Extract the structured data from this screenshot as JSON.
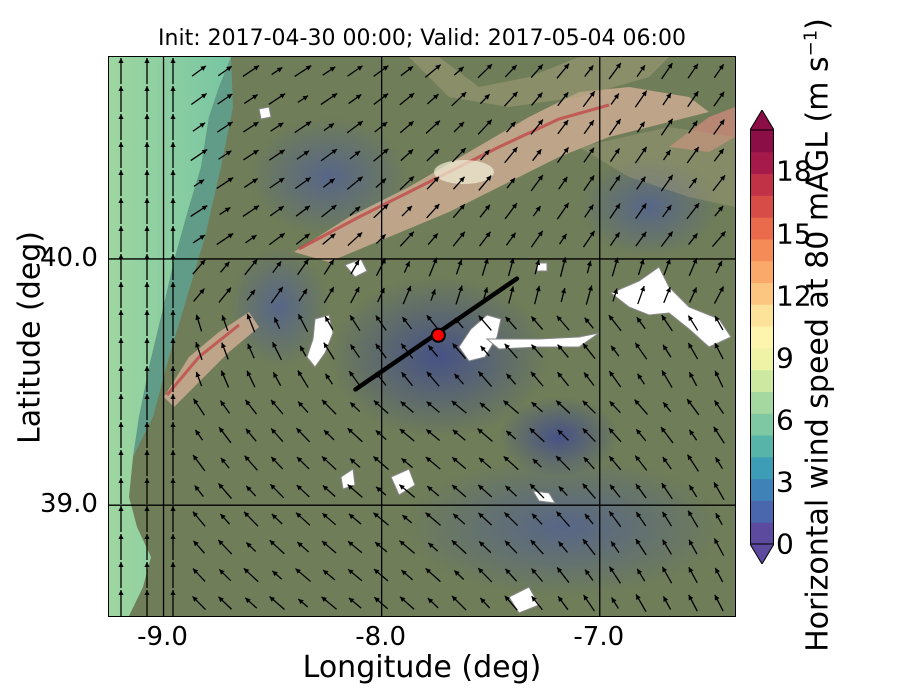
{
  "title": "Init: 2017-04-30 00:00; Valid: 2017-05-04 06:00",
  "xlabel": "Longitude (deg)",
  "ylabel": "Latitude (deg)",
  "x_ticks": [
    "-9.0",
    "-8.0",
    "-7.0"
  ],
  "y_ticks": [
    "40.0",
    "39.0"
  ],
  "colorbar": {
    "label_main": "Horizontal wind speed at 80 mAGL (m s",
    "label_exp": "−1",
    "label_close": ")",
    "ticks": [
      "0",
      "3",
      "6",
      "9",
      "12",
      "15",
      "18"
    ],
    "range": [
      0,
      20
    ],
    "colors": [
      "#5b4a9e",
      "#4a66ac",
      "#3f82b8",
      "#3e9db6",
      "#56b4a8",
      "#7ec8a3",
      "#a4d8a0",
      "#cde9a1",
      "#eef3a6",
      "#fdf4ad",
      "#fde29a",
      "#fdc680",
      "#fba96a",
      "#f58b56",
      "#ea6b4b",
      "#d84c48",
      "#c23247",
      "#a51a4b",
      "#8c0e47"
    ]
  },
  "map": {
    "lon_range": [
      -9.25,
      -6.38
    ],
    "lat_range": [
      38.55,
      40.82
    ],
    "gridlines_lon": [
      -9.0,
      -8.0,
      -7.0
    ],
    "gridlines_lat": [
      40.0,
      39.0
    ],
    "transect": {
      "start": [
        -8.12,
        39.47
      ],
      "end": [
        -7.38,
        39.92
      ]
    },
    "marker": {
      "lon": -7.74,
      "lat": 39.69,
      "color": "#ff0000"
    },
    "colors": {
      "land": "#6f7d58",
      "sea": "#8ccf9b",
      "ridge": "#c7a98f",
      "ridge_edge": "#c04848",
      "calm": "#4a4f8a"
    }
  }
}
